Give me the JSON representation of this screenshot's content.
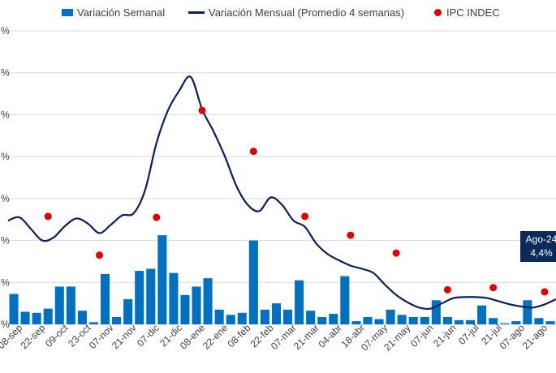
{
  "chart_data": {
    "type": "bar",
    "colors": {
      "bars": "#0070c0",
      "line": "#0a1f5c",
      "dots": "#e00000",
      "callout": "#0a2a5c"
    },
    "legend": {
      "bar": "Variación Semanal",
      "line": "Variación Mensual (Promedio 4 semanas)",
      "dot": "IPC INDEC"
    },
    "y_tick_labels": [
      "%",
      "%",
      "%",
      "%",
      "%",
      "%",
      "%",
      "%"
    ],
    "ylim": [
      0,
      28
    ],
    "grid": true,
    "x_labels": [
      "08-sep",
      "22-sep",
      "09-oct",
      "23-oct",
      "07-nov",
      "21-nov",
      "07-dic",
      "21-dic",
      "08-ene",
      "22-ene",
      "08-feb",
      "22-feb",
      "07-mar",
      "21-mar",
      "04-abr",
      "18-abr",
      "07-may",
      "21-may",
      "07-jun",
      "21-jun",
      "07-jul",
      "21-jul",
      "07-ago",
      "21-ago"
    ],
    "weekly": [
      2.9,
      1.2,
      1.1,
      1.5,
      3.6,
      3.6,
      1.3,
      0.2,
      4.8,
      0.7,
      2.4,
      5.1,
      5.3,
      8.5,
      4.9,
      2.8,
      3.6,
      4.4,
      1.4,
      0.9,
      1.1,
      8.0,
      1.4,
      2.0,
      1.4,
      4.2,
      1.3,
      0.7,
      1.0,
      4.6,
      0.3,
      0.7,
      0.5,
      1.4,
      0.9,
      0.7,
      0.7,
      2.3,
      0.7,
      0.4,
      0.4,
      1.8,
      0.6,
      0.1,
      0.3,
      2.3,
      0.6,
      0.3
    ],
    "monthly": [
      9.9,
      10.2,
      9.1,
      8.0,
      8.3,
      9.4,
      10.1,
      9.6,
      8.7,
      9.5,
      10.4,
      10.6,
      12.8,
      17.3,
      20.4,
      22.3,
      23.6,
      20.5,
      18.4,
      16.0,
      13.2,
      11.4,
      10.8,
      12.1,
      11.4,
      9.9,
      9.3,
      7.7,
      6.7,
      6.1,
      5.6,
      5.3,
      4.9,
      3.8,
      2.8,
      2.1,
      1.6,
      1.5,
      2.0,
      2.5,
      2.6,
      2.6,
      2.5,
      2.2,
      1.9,
      1.7,
      1.6,
      1.9,
      2.4
    ],
    "ipc": [
      {
        "week": 3,
        "value": 10.3
      },
      {
        "week": 7.5,
        "value": 6.6
      },
      {
        "week": 12.5,
        "value": 10.2
      },
      {
        "week": 16.5,
        "value": 20.4
      },
      {
        "week": 21,
        "value": 16.5
      },
      {
        "week": 25.5,
        "value": 10.3
      },
      {
        "week": 29.5,
        "value": 8.5
      },
      {
        "week": 33.5,
        "value": 6.8
      },
      {
        "week": 38,
        "value": 3.3
      },
      {
        "week": 42,
        "value": 3.5
      },
      {
        "week": 46.5,
        "value": 3.1
      }
    ],
    "callout": {
      "line1": "Ago-24",
      "line2": "4,4%"
    }
  }
}
